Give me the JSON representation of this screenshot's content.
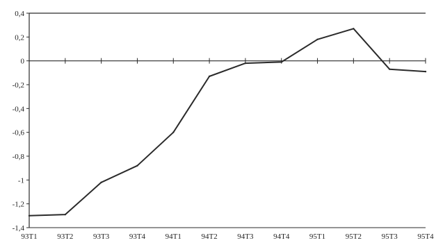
{
  "chart_data": {
    "type": "line",
    "title": "",
    "xlabel": "",
    "ylabel": "",
    "categories": [
      "93T1",
      "93T2",
      "93T3",
      "93T4",
      "94T1",
      "94T2",
      "94T3",
      "94T4",
      "95T1",
      "95T2",
      "95T3",
      "95T4"
    ],
    "series": [
      {
        "values": [
          -1.3,
          -1.29,
          -1.02,
          -0.88,
          -0.6,
          -0.13,
          -0.02,
          -0.01,
          0.18,
          0.27,
          -0.07,
          -0.09
        ]
      }
    ],
    "ylim": [
      -1.4,
      0.4
    ],
    "yticks": [
      "0,4",
      "0,2",
      "0",
      "-0,2",
      "-0,4",
      "-0,6",
      "-0,8",
      "-1",
      "-1,2",
      "-1,4"
    ],
    "grid": false,
    "legend": "none",
    "colors": {
      "line": "#2a2a2a",
      "axis": "#2a2a2a",
      "frame": "#2a2a2a"
    }
  }
}
